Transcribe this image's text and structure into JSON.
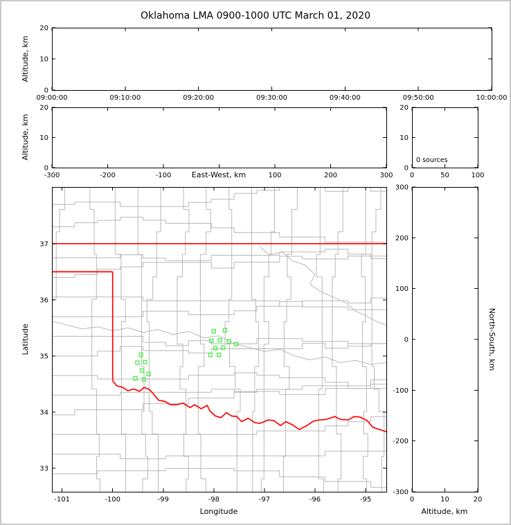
{
  "colors": {
    "state_border": "#ff0000",
    "county_line": "#b8b8b8",
    "river_line": "#b8b8b8",
    "station": "#44ee44",
    "axis": "#000000",
    "background": "#ffffff",
    "page_border": "#c9c9c9"
  },
  "chart_data": {
    "type": "scatter",
    "title": "Oklahoma LMA 0900-1000 UTC March 01, 2020",
    "panels": {
      "time_height": {
        "ylabel": "Altitude, km",
        "ylim": [
          0,
          20
        ],
        "yticks": [
          0,
          10,
          20
        ],
        "xtick_labels": [
          "09:00:00",
          "09:10:00",
          "09:20:00",
          "09:30:00",
          "09:40:00",
          "09:50:00",
          "10:00:00"
        ],
        "points": []
      },
      "ew_height": {
        "xlabel": "East-West, km",
        "ylabel": "Altitude, km",
        "xlim": [
          -300,
          300
        ],
        "xticks": [
          -300,
          -200,
          -100,
          0,
          100,
          200,
          300
        ],
        "xtick_labels": [
          "-300",
          "-200",
          "-100",
          "",
          "100",
          "200",
          "300"
        ],
        "ylim": [
          0,
          20
        ],
        "yticks": [
          0,
          10,
          20
        ],
        "points": []
      },
      "histogram": {
        "annotation": "0 sources",
        "xlim": [
          0,
          100
        ],
        "xticks": [
          0,
          50,
          100
        ],
        "ylim": [
          0,
          20
        ],
        "yticks": [
          0,
          10,
          20
        ],
        "points": []
      },
      "map": {
        "xlabel": "Longitude",
        "ylabel": "Latitude",
        "xlim": [
          -101.2,
          -94.59
        ],
        "ylim": [
          32.58,
          38.01
        ],
        "xticks": [
          -101,
          -100,
          -99,
          -98,
          -97,
          -96,
          -95
        ],
        "yticks": [
          33,
          34,
          35,
          36,
          37
        ],
        "stations": [
          [
            -98.0,
            35.44
          ],
          [
            -97.78,
            35.46
          ],
          [
            -98.05,
            35.27
          ],
          [
            -97.88,
            35.28
          ],
          [
            -97.7,
            35.26
          ],
          [
            -97.97,
            35.14
          ],
          [
            -97.82,
            35.15
          ],
          [
            -98.07,
            35.02
          ],
          [
            -97.9,
            35.02
          ],
          [
            -97.56,
            35.21
          ],
          [
            -99.44,
            35.02
          ],
          [
            -99.51,
            34.88
          ],
          [
            -99.36,
            34.89
          ],
          [
            -99.42,
            34.74
          ],
          [
            -99.55,
            34.6
          ],
          [
            -99.38,
            34.58
          ],
          [
            -99.29,
            34.68
          ]
        ],
        "state_border": [
          [
            [
              -101.2,
              37.0
            ],
            [
              -94.59,
              37.0
            ]
          ],
          [
            [
              -101.2,
              36.5
            ],
            [
              -100.0,
              36.5
            ]
          ],
          [
            [
              -100.0,
              36.5
            ],
            [
              -100.0,
              34.56
            ]
          ],
          [
            [
              -100.0,
              34.56
            ],
            [
              -99.92,
              34.47
            ],
            [
              -99.8,
              34.44
            ],
            [
              -99.7,
              34.38
            ],
            [
              -99.58,
              34.41
            ],
            [
              -99.47,
              34.37
            ],
            [
              -99.38,
              34.44
            ],
            [
              -99.27,
              34.4
            ],
            [
              -99.2,
              34.33
            ],
            [
              -99.09,
              34.21
            ],
            [
              -98.97,
              34.19
            ],
            [
              -98.86,
              34.13
            ],
            [
              -98.74,
              34.13
            ],
            [
              -98.61,
              34.16
            ],
            [
              -98.47,
              34.08
            ],
            [
              -98.38,
              34.13
            ],
            [
              -98.25,
              34.06
            ],
            [
              -98.13,
              34.12
            ],
            [
              -98.08,
              34.02
            ],
            [
              -97.97,
              33.93
            ],
            [
              -97.86,
              33.9
            ],
            [
              -97.75,
              33.99
            ],
            [
              -97.65,
              33.93
            ],
            [
              -97.55,
              33.92
            ],
            [
              -97.45,
              33.83
            ],
            [
              -97.32,
              33.89
            ],
            [
              -97.19,
              33.81
            ],
            [
              -97.08,
              33.8
            ],
            [
              -96.93,
              33.86
            ],
            [
              -96.82,
              33.85
            ],
            [
              -96.68,
              33.76
            ],
            [
              -96.58,
              33.83
            ],
            [
              -96.44,
              33.77
            ],
            [
              -96.31,
              33.69
            ],
            [
              -96.16,
              33.76
            ],
            [
              -96.03,
              33.84
            ],
            [
              -95.91,
              33.86
            ],
            [
              -95.78,
              33.87
            ],
            [
              -95.61,
              33.92
            ],
            [
              -95.5,
              33.87
            ],
            [
              -95.34,
              33.86
            ],
            [
              -95.23,
              33.92
            ],
            [
              -95.11,
              33.91
            ],
            [
              -94.97,
              33.85
            ],
            [
              -94.86,
              33.73
            ],
            [
              -94.73,
              33.69
            ],
            [
              -94.55,
              33.64
            ]
          ]
        ],
        "rivers": [
          [
            [
              -101.2,
              35.62
            ],
            [
              -100.9,
              35.55
            ],
            [
              -100.6,
              35.48
            ],
            [
              -100.3,
              35.52
            ],
            [
              -100.0,
              35.45
            ],
            [
              -99.7,
              35.5
            ],
            [
              -99.4,
              35.42
            ],
            [
              -99.1,
              35.47
            ],
            [
              -98.8,
              35.38
            ],
            [
              -98.5,
              35.44
            ],
            [
              -98.2,
              35.32
            ],
            [
              -97.9,
              35.36
            ],
            [
              -97.6,
              35.22
            ],
            [
              -97.3,
              35.15
            ],
            [
              -97.0,
              35.08
            ],
            [
              -96.7,
              35.12
            ],
            [
              -96.4,
              35.0
            ],
            [
              -96.1,
              34.93
            ],
            [
              -95.8,
              34.98
            ],
            [
              -95.5,
              34.88
            ],
            [
              -95.2,
              34.92
            ],
            [
              -94.9,
              34.85
            ],
            [
              -94.59,
              34.88
            ]
          ],
          [
            [
              -97.1,
              36.95
            ],
            [
              -96.9,
              36.8
            ],
            [
              -96.65,
              36.85
            ],
            [
              -96.45,
              36.7
            ],
            [
              -96.2,
              36.62
            ],
            [
              -96.0,
              36.45
            ],
            [
              -96.1,
              36.28
            ],
            [
              -95.9,
              36.15
            ],
            [
              -95.65,
              36.05
            ],
            [
              -95.4,
              35.95
            ],
            [
              -95.2,
              35.8
            ],
            [
              -95.0,
              35.72
            ],
            [
              -94.75,
              35.6
            ],
            [
              -94.59,
              35.55
            ]
          ]
        ],
        "county_grid": {
          "lon_lines": [
            -100.95,
            -100.45,
            -99.95,
            -99.5,
            -99.05,
            -98.6,
            -98.15,
            -97.7,
            -97.25,
            -96.8,
            -96.35,
            -95.9,
            -95.45,
            -95.0,
            -94.7
          ],
          "lat_lines": [
            37.7,
            37.3,
            36.75,
            36.4,
            36.05,
            35.7,
            35.35,
            35.0,
            34.65,
            34.3,
            33.95,
            33.6,
            33.25,
            32.9
          ]
        }
      },
      "ns_height": {
        "xlabel": "Altitude, km",
        "ylabel_right": "North-South, km",
        "xlim": [
          0,
          20
        ],
        "xticks": [
          0,
          10,
          20
        ],
        "ylim": [
          -300,
          300
        ],
        "yticks": [
          300,
          200,
          100,
          0,
          -100,
          -200,
          -300
        ],
        "points": []
      }
    }
  }
}
